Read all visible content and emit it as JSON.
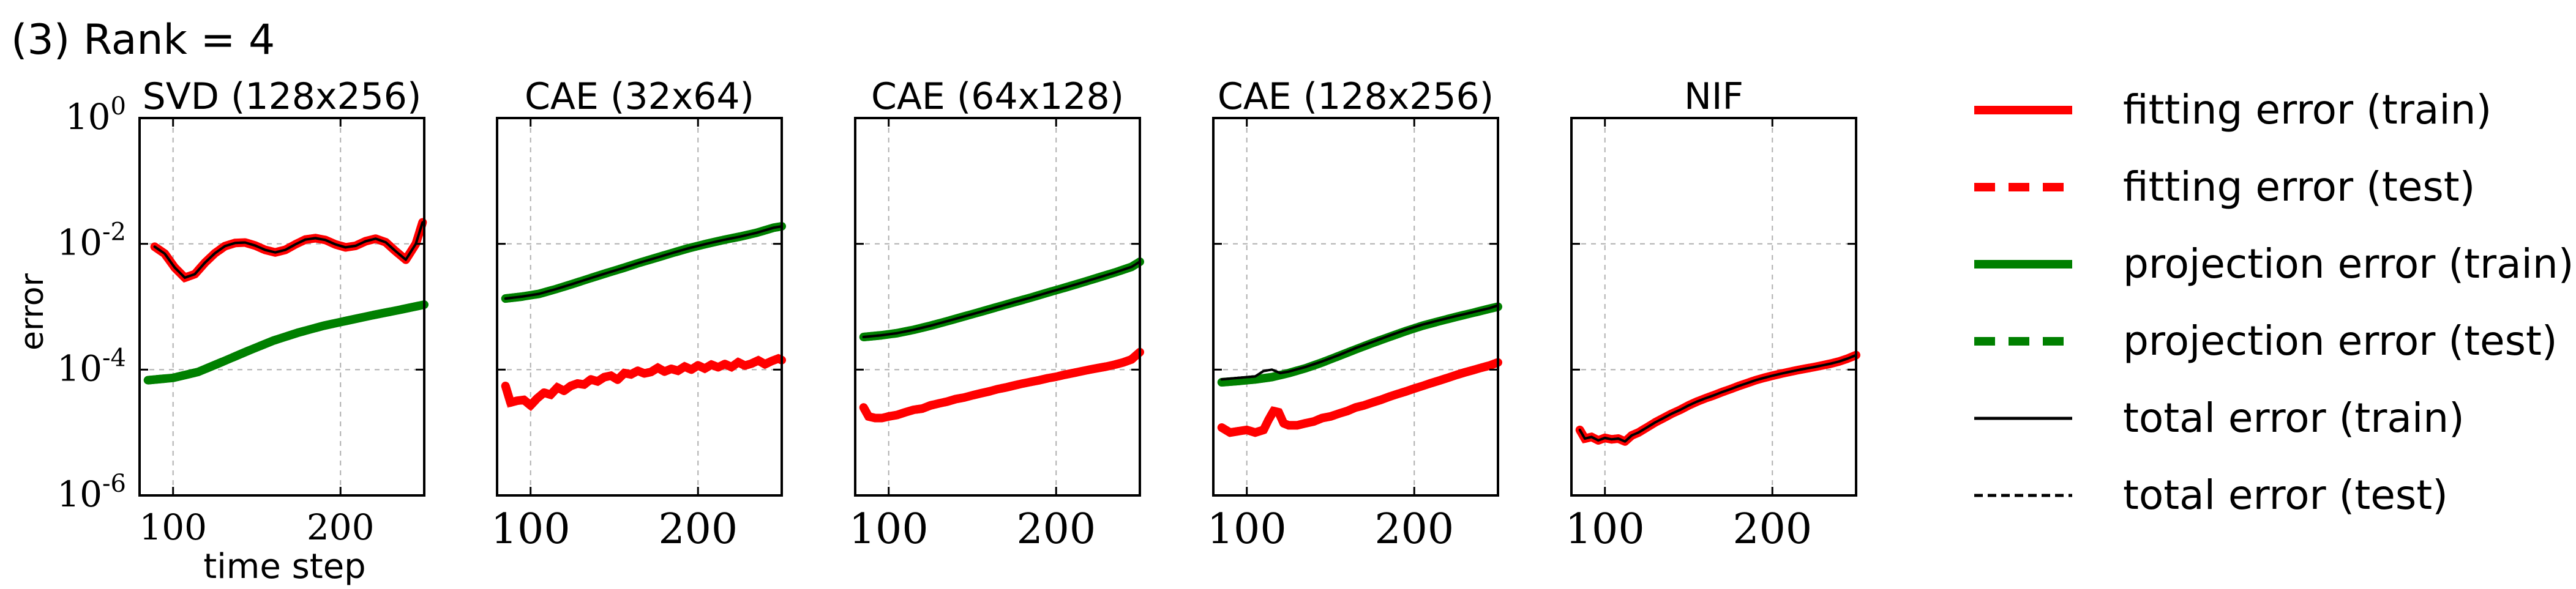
{
  "figure": {
    "title": "(3) Rank = 4"
  },
  "colors": {
    "red": "#ff0000",
    "green": "#008000",
    "black": "#000000",
    "grid": "#b0b0b0"
  },
  "axis_labels": {
    "ylabel": "error",
    "xlabel": "time step"
  },
  "legend": {
    "placement": "right",
    "entries": [
      {
        "label": "fitting error (train)",
        "color": "#ff0000",
        "style": "solid"
      },
      {
        "label": "fitting error (test)",
        "color": "#ff0000",
        "style": "dashed"
      },
      {
        "label": "projection error (train)",
        "color": "#008000",
        "style": "solid"
      },
      {
        "label": "projection error (test)",
        "color": "#008000",
        "style": "dashed"
      },
      {
        "label": "total error (train)",
        "color": "#000000",
        "style": "solid-thin"
      },
      {
        "label": "total error (test)",
        "color": "#000000",
        "style": "dashed-thin"
      }
    ]
  },
  "chart_data": [
    {
      "type": "line",
      "title": "SVD (128x256)",
      "xlabel": "time step",
      "ylabel": "error",
      "yscale": "log",
      "xlim": [
        80,
        250
      ],
      "ylim": [
        1e-06,
        1
      ],
      "xticks": [
        100,
        200
      ],
      "yticks": [
        "10^0",
        "10^-2",
        "10^-4",
        "10^-6"
      ],
      "grid": true,
      "series": [
        {
          "key": "fit",
          "color": "red",
          "x": [
            89,
            95,
            101,
            107,
            113,
            119,
            125,
            131,
            137,
            143,
            149,
            155,
            161,
            167,
            173,
            179,
            185,
            191,
            197,
            203,
            209,
            215,
            221,
            227,
            233,
            239,
            245,
            249
          ],
          "y": [
            0.009,
            0.007,
            0.0042,
            0.0029,
            0.0033,
            0.005,
            0.0071,
            0.0092,
            0.0103,
            0.0105,
            0.0094,
            0.008,
            0.0073,
            0.008,
            0.0098,
            0.0117,
            0.0123,
            0.0115,
            0.0098,
            0.0088,
            0.0093,
            0.011,
            0.0121,
            0.0106,
            0.0076,
            0.0056,
            0.01,
            0.022
          ]
        },
        {
          "key": "proj",
          "color": "green",
          "x": [
            85,
            100,
            115,
            130,
            145,
            160,
            175,
            190,
            205,
            220,
            235,
            250
          ],
          "y": [
            6.8e-05,
            7.4e-05,
            9.2e-05,
            0.000135,
            0.0002,
            0.00029,
            0.00039,
            0.0005,
            0.00061,
            0.00074,
            0.00089,
            0.00108
          ]
        },
        {
          "key": "total",
          "color": "black",
          "x": [
            89,
            95,
            101,
            107,
            113,
            119,
            125,
            131,
            137,
            143,
            149,
            155,
            161,
            167,
            173,
            179,
            185,
            191,
            197,
            203,
            209,
            215,
            221,
            227,
            233,
            239,
            245,
            249
          ],
          "y": [
            0.009,
            0.007,
            0.0042,
            0.0029,
            0.0033,
            0.005,
            0.0071,
            0.0092,
            0.0103,
            0.0105,
            0.0094,
            0.008,
            0.0073,
            0.008,
            0.0098,
            0.0117,
            0.0123,
            0.0115,
            0.0098,
            0.0088,
            0.0093,
            0.011,
            0.0121,
            0.0106,
            0.0076,
            0.0056,
            0.01,
            0.022
          ]
        }
      ]
    },
    {
      "type": "line",
      "title": "CAE (32x64)",
      "yscale": "log",
      "xlim": [
        80,
        250
      ],
      "ylim": [
        1e-06,
        1
      ],
      "xticks": [
        100,
        200
      ],
      "grid": true,
      "series": [
        {
          "key": "fit",
          "color": "red",
          "x": [
            85,
            88,
            92,
            96,
            100,
            104,
            108,
            112,
            116,
            120,
            124,
            128,
            132,
            136,
            140,
            144,
            148,
            152,
            156,
            160,
            164,
            168,
            172,
            176,
            180,
            184,
            188,
            192,
            196,
            200,
            204,
            208,
            212,
            216,
            220,
            224,
            228,
            232,
            236,
            240,
            244,
            248,
            250
          ],
          "y": [
            5.5e-05,
            3e-05,
            3.2e-05,
            3.3e-05,
            2.7e-05,
            3.5e-05,
            4.3e-05,
            4e-05,
            5.2e-05,
            4.6e-05,
            5.5e-05,
            6e-05,
            5.8e-05,
            7e-05,
            6.5e-05,
            7.6e-05,
            8e-05,
            6.9e-05,
            8.8e-05,
            8.4e-05,
            9.6e-05,
            8.7e-05,
            9.2e-05,
            0.000107,
            9.3e-05,
            0.000103,
            9.6e-05,
            0.000112,
            0.0001,
            0.000117,
            0.000104,
            0.00012,
            0.000109,
            0.000123,
            0.00011,
            0.000131,
            0.000116,
            0.000125,
            0.00014,
            0.000122,
            0.000137,
            0.00015,
            0.000142
          ]
        },
        {
          "key": "proj",
          "color": "green",
          "x": [
            85,
            95,
            105,
            115,
            125,
            135,
            145,
            155,
            165,
            175,
            185,
            195,
            205,
            215,
            225,
            235,
            245,
            250
          ],
          "y": [
            0.00135,
            0.00145,
            0.0016,
            0.0019,
            0.0023,
            0.0028,
            0.0034,
            0.0041,
            0.005,
            0.006,
            0.0072,
            0.0086,
            0.01,
            0.0115,
            0.013,
            0.015,
            0.018,
            0.019
          ]
        },
        {
          "key": "total",
          "color": "black",
          "x": [
            85,
            95,
            105,
            115,
            125,
            135,
            145,
            155,
            165,
            175,
            185,
            195,
            205,
            215,
            225,
            235,
            245,
            250
          ],
          "y": [
            0.00135,
            0.00145,
            0.0016,
            0.0019,
            0.0023,
            0.0028,
            0.0034,
            0.0041,
            0.005,
            0.006,
            0.0072,
            0.0086,
            0.01,
            0.0115,
            0.013,
            0.015,
            0.018,
            0.019
          ]
        }
      ]
    },
    {
      "type": "line",
      "title": "CAE (64x128)",
      "yscale": "log",
      "xlim": [
        80,
        250
      ],
      "ylim": [
        1e-06,
        1
      ],
      "xticks": [
        100,
        200
      ],
      "grid": true,
      "series": [
        {
          "key": "fit",
          "color": "red",
          "x": [
            85,
            88,
            92,
            96,
            100,
            105,
            110,
            115,
            120,
            125,
            130,
            135,
            140,
            145,
            150,
            155,
            160,
            165,
            170,
            175,
            180,
            185,
            190,
            195,
            200,
            205,
            210,
            215,
            220,
            225,
            230,
            235,
            240,
            245,
            250
          ],
          "y": [
            2.5e-05,
            1.8e-05,
            1.7e-05,
            1.7e-05,
            1.8e-05,
            1.9e-05,
            2.1e-05,
            2.3e-05,
            2.4e-05,
            2.7e-05,
            2.9e-05,
            3.1e-05,
            3.4e-05,
            3.6e-05,
            3.9e-05,
            4.2e-05,
            4.5e-05,
            4.9e-05,
            5.2e-05,
            5.6e-05,
            6e-05,
            6.4e-05,
            6.8e-05,
            7.3e-05,
            7.7e-05,
            8.3e-05,
            8.8e-05,
            9.4e-05,
            0.0001,
            0.000106,
            0.000112,
            0.00012,
            0.00013,
            0.000145,
            0.00019
          ]
        },
        {
          "key": "proj",
          "color": "green",
          "x": [
            85,
            95,
            105,
            115,
            125,
            135,
            145,
            155,
            165,
            175,
            185,
            195,
            205,
            215,
            225,
            235,
            245,
            250
          ],
          "y": [
            0.00033,
            0.00035,
            0.00038,
            0.00043,
            0.0005,
            0.00059,
            0.0007,
            0.00083,
            0.00099,
            0.00118,
            0.0014,
            0.00168,
            0.002,
            0.0024,
            0.0029,
            0.0035,
            0.0043,
            0.0052
          ]
        },
        {
          "key": "total",
          "color": "black",
          "x": [
            85,
            95,
            105,
            115,
            125,
            135,
            145,
            155,
            165,
            175,
            185,
            195,
            205,
            215,
            225,
            235,
            245,
            250
          ],
          "y": [
            0.00033,
            0.00035,
            0.00038,
            0.00043,
            0.0005,
            0.00059,
            0.0007,
            0.00083,
            0.00099,
            0.00118,
            0.0014,
            0.00168,
            0.002,
            0.0024,
            0.0029,
            0.0035,
            0.0043,
            0.0052
          ]
        }
      ]
    },
    {
      "type": "line",
      "title": "CAE (128x256)",
      "yscale": "log",
      "xlim": [
        80,
        250
      ],
      "ylim": [
        1e-06,
        1
      ],
      "xticks": [
        100,
        200
      ],
      "grid": true,
      "series": [
        {
          "key": "fit",
          "color": "red",
          "x": [
            85,
            90,
            95,
            100,
            105,
            110,
            113,
            116,
            119,
            122,
            125,
            130,
            135,
            140,
            145,
            150,
            155,
            160,
            165,
            170,
            175,
            180,
            185,
            190,
            195,
            200,
            205,
            210,
            215,
            220,
            225,
            230,
            235,
            240,
            245,
            250
          ],
          "y": [
            1.2e-05,
            1e-05,
            1.05e-05,
            1.1e-05,
            1e-05,
            1.1e-05,
            1.6e-05,
            2.2e-05,
            2.1e-05,
            1.4e-05,
            1.3e-05,
            1.3e-05,
            1.4e-05,
            1.5e-05,
            1.7e-05,
            1.8e-05,
            2e-05,
            2.2e-05,
            2.5e-05,
            2.7e-05,
            3e-05,
            3.3e-05,
            3.7e-05,
            4.1e-05,
            4.5e-05,
            5e-05,
            5.5e-05,
            6.1e-05,
            6.7e-05,
            7.4e-05,
            8.2e-05,
            9e-05,
            9.8e-05,
            0.000107,
            0.000116,
            0.00013
          ]
        },
        {
          "key": "proj",
          "color": "green",
          "x": [
            85,
            95,
            105,
            115,
            125,
            135,
            145,
            155,
            165,
            175,
            185,
            195,
            205,
            215,
            225,
            235,
            245,
            250
          ],
          "y": [
            6.3e-05,
            6.6e-05,
            7e-05,
            7.6e-05,
            8.8e-05,
            0.000105,
            0.00013,
            0.000165,
            0.00021,
            0.000265,
            0.00033,
            0.00041,
            0.0005,
            0.00059,
            0.00069,
            0.0008,
            0.00093,
            0.001
          ]
        },
        {
          "key": "total",
          "color": "black",
          "x": [
            85,
            95,
            105,
            110,
            115,
            120,
            125,
            135,
            145,
            155,
            165,
            175,
            185,
            195,
            205,
            215,
            225,
            235,
            245,
            250
          ],
          "y": [
            7e-05,
            7.4e-05,
            7.8e-05,
            9.5e-05,
            0.0001,
            8.8e-05,
            9.3e-05,
            0.00011,
            0.000135,
            0.00017,
            0.00022,
            0.000275,
            0.000345,
            0.00043,
            0.00052,
            0.00061,
            0.00071,
            0.00082,
            0.00095,
            0.00105
          ]
        }
      ]
    },
    {
      "type": "line",
      "title": "NIF",
      "yscale": "log",
      "xlim": [
        80,
        250
      ],
      "ylim": [
        1e-06,
        1
      ],
      "xticks": [
        100,
        200
      ],
      "grid": true,
      "series": [
        {
          "key": "fit",
          "color": "red",
          "x": [
            85,
            88,
            92,
            96,
            100,
            104,
            108,
            112,
            116,
            120,
            125,
            130,
            135,
            140,
            145,
            150,
            155,
            160,
            165,
            170,
            175,
            180,
            185,
            190,
            195,
            200,
            205,
            210,
            215,
            220,
            225,
            230,
            235,
            240,
            245,
            250
          ],
          "y": [
            1.1e-05,
            8e-06,
            8.5e-06,
            7.5e-06,
            8.2e-06,
            7.8e-06,
            8e-06,
            7.2e-06,
            9e-06,
            1e-05,
            1.2e-05,
            1.45e-05,
            1.7e-05,
            2e-05,
            2.3e-05,
            2.7e-05,
            3.1e-05,
            3.5e-05,
            3.9e-05,
            4.4e-05,
            4.9e-05,
            5.5e-05,
            6.1e-05,
            6.8e-05,
            7.4e-05,
            8e-05,
            8.6e-05,
            9.2e-05,
            9.8e-05,
            0.000104,
            0.00011,
            0.000117,
            0.000125,
            0.000135,
            0.00015,
            0.00017
          ]
        },
        {
          "key": "total",
          "color": "black",
          "x": [
            85,
            88,
            92,
            96,
            100,
            104,
            108,
            112,
            116,
            120,
            125,
            130,
            135,
            140,
            145,
            150,
            155,
            160,
            165,
            170,
            175,
            180,
            185,
            190,
            195,
            200,
            205,
            210,
            215,
            220,
            225,
            230,
            235,
            240,
            245,
            250
          ],
          "y": [
            1.1e-05,
            8e-06,
            8.5e-06,
            7.5e-06,
            8.2e-06,
            7.8e-06,
            8e-06,
            7.2e-06,
            9e-06,
            1e-05,
            1.2e-05,
            1.45e-05,
            1.7e-05,
            2e-05,
            2.3e-05,
            2.7e-05,
            3.1e-05,
            3.5e-05,
            3.9e-05,
            4.4e-05,
            4.9e-05,
            5.5e-05,
            6.1e-05,
            6.8e-05,
            7.4e-05,
            8e-05,
            8.6e-05,
            9.2e-05,
            9.8e-05,
            0.000104,
            0.00011,
            0.000117,
            0.000125,
            0.000135,
            0.00015,
            0.00017
          ]
        }
      ]
    }
  ]
}
